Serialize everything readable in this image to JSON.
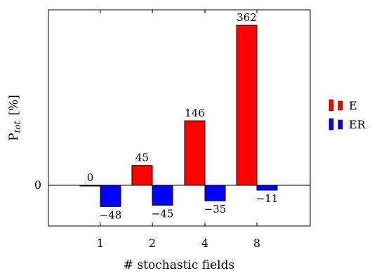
{
  "chart_data": {
    "type": "bar",
    "categories": [
      "1",
      "2",
      "4",
      "8"
    ],
    "series": [
      {
        "name": "E",
        "color": "#ff0000",
        "values": [
          0,
          45,
          146,
          362
        ],
        "labels": [
          "0",
          "45",
          "146",
          "362"
        ]
      },
      {
        "name": "ER",
        "color": "#0000ff",
        "values": [
          -48,
          -45,
          -35,
          -11
        ],
        "labels": [
          "−48",
          "−45",
          "−35",
          "−11"
        ]
      }
    ],
    "xlabel": "# stochastic fields",
    "ylabel": {
      "main": "P",
      "sub": "tot",
      "unit": "[%]"
    },
    "yticks": [
      {
        "value": 0,
        "label": "0"
      }
    ],
    "ylim": [
      -92,
      397
    ],
    "grid": false,
    "legend": "right"
  }
}
